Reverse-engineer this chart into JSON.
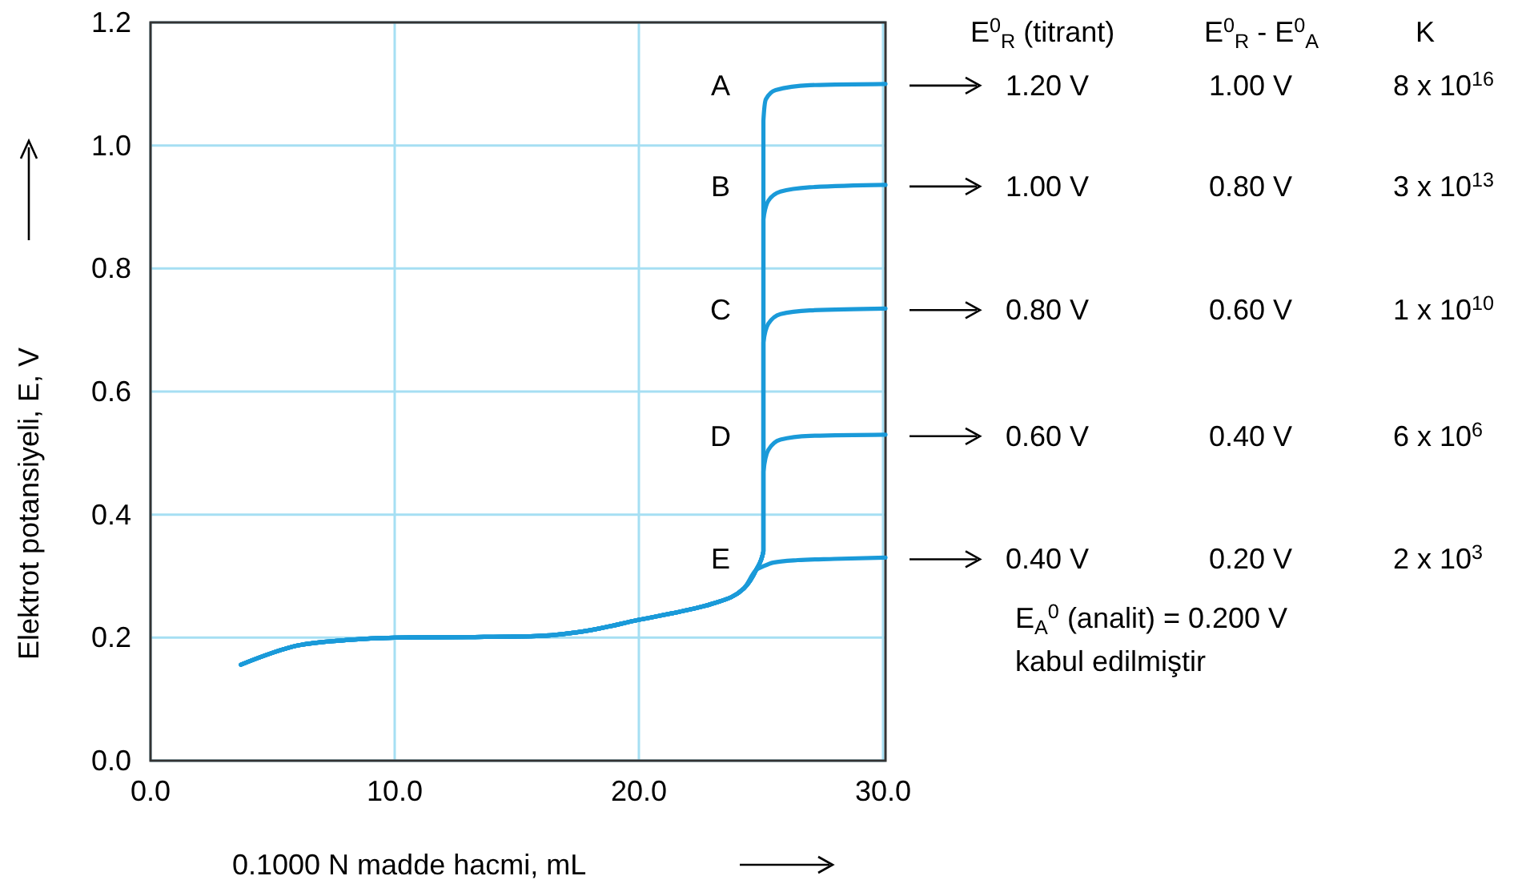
{
  "chart_data": {
    "type": "line",
    "xlabel": "0.1000 N madde hacmi, mL",
    "ylabel": "Elektrot potansiyeli, E, V",
    "xlim": [
      0,
      30.1
    ],
    "ylim": [
      0,
      1.2
    ],
    "xticks": [
      {
        "value": 0,
        "label": "0.0"
      },
      {
        "value": 10,
        "label": "10.0"
      },
      {
        "value": 20,
        "label": "20.0"
      },
      {
        "value": 30,
        "label": "30.0"
      }
    ],
    "yticks": [
      {
        "value": 0,
        "label": "0.0"
      },
      {
        "value": 0.2,
        "label": "0.2"
      },
      {
        "value": 0.4,
        "label": "0.4"
      },
      {
        "value": 0.6,
        "label": "0.6"
      },
      {
        "value": 0.8,
        "label": "0.8"
      },
      {
        "value": 1,
        "label": "1.0"
      },
      {
        "value": 1.2,
        "label": "1.2"
      }
    ],
    "grid": true,
    "line_style": "solid",
    "series": [
      {
        "color": "#1a9ad9",
        "x": [
          3.7,
          6,
          8,
          10,
          13,
          16,
          18,
          20,
          22,
          23,
          24.3,
          24.8,
          25.1,
          25.1,
          25.2,
          25.6,
          27,
          30.1
        ],
        "values": [
          0.156,
          0.187,
          0.196,
          0.2,
          0.201,
          0.203,
          0.212,
          0.229,
          0.245,
          0.255,
          0.28,
          0.31,
          0.34,
          1.04,
          1.075,
          1.09,
          1.098,
          1.1
        ]
      },
      {
        "color": "#1a9ad9",
        "x": [
          3.7,
          6,
          8,
          10,
          13,
          16,
          18,
          20,
          22,
          23,
          24.3,
          24.8,
          25.1,
          25.1,
          25.3,
          25.8,
          27,
          30.1
        ],
        "values": [
          0.156,
          0.187,
          0.196,
          0.2,
          0.201,
          0.203,
          0.212,
          0.229,
          0.245,
          0.255,
          0.28,
          0.31,
          0.34,
          0.88,
          0.91,
          0.925,
          0.932,
          0.936
        ]
      },
      {
        "color": "#1a9ad9",
        "x": [
          3.7,
          6,
          8,
          10,
          13,
          16,
          18,
          20,
          22,
          23,
          24.3,
          24.8,
          25.1,
          25.1,
          25.3,
          25.8,
          27,
          30.1
        ],
        "values": [
          0.156,
          0.187,
          0.196,
          0.2,
          0.201,
          0.203,
          0.212,
          0.229,
          0.245,
          0.255,
          0.28,
          0.31,
          0.34,
          0.68,
          0.71,
          0.726,
          0.732,
          0.735
        ]
      },
      {
        "color": "#1a9ad9",
        "x": [
          3.7,
          6,
          8,
          10,
          13,
          16,
          18,
          20,
          22,
          23,
          24.3,
          24.8,
          25.1,
          25.1,
          25.3,
          25.8,
          27,
          30.1
        ],
        "values": [
          0.156,
          0.187,
          0.196,
          0.2,
          0.201,
          0.203,
          0.212,
          0.229,
          0.245,
          0.255,
          0.28,
          0.31,
          0.34,
          0.47,
          0.505,
          0.522,
          0.528,
          0.53
        ]
      },
      {
        "color": "#1a9ad9",
        "x": [
          3.7,
          6,
          8,
          10,
          13,
          16,
          18,
          20,
          22,
          23,
          24.3,
          24.8,
          25.1,
          25.5,
          26.5,
          28,
          30.1
        ],
        "values": [
          0.156,
          0.187,
          0.196,
          0.2,
          0.201,
          0.203,
          0.212,
          0.229,
          0.245,
          0.255,
          0.28,
          0.31,
          0.316,
          0.322,
          0.326,
          0.328,
          0.33
        ]
      }
    ],
    "annotations": [
      "A",
      "B",
      "C",
      "D",
      "E",
      "E$^{0}$$_{R}$ (titrant)",
      "E$^{0}$$_{R}$ - E$^{0}$$_{A}$",
      "K",
      "1.20 V",
      "1.00 V",
      "8 x 10$^{16}$",
      "1.00 V",
      "0.80 V",
      "3 x 10$^{13}$",
      "0.80 V",
      "0.60 V",
      "1 x 10$^{10}$",
      "0.60 V",
      "0.40 V",
      "6 x 10$^{6}$",
      "0.40 V",
      "0.20 V",
      "2 x 10$^{3}$",
      "E$_{A}$$^{0}$ (analit) = 0.200 V",
      "kabul edilmiştir"
    ]
  }
}
